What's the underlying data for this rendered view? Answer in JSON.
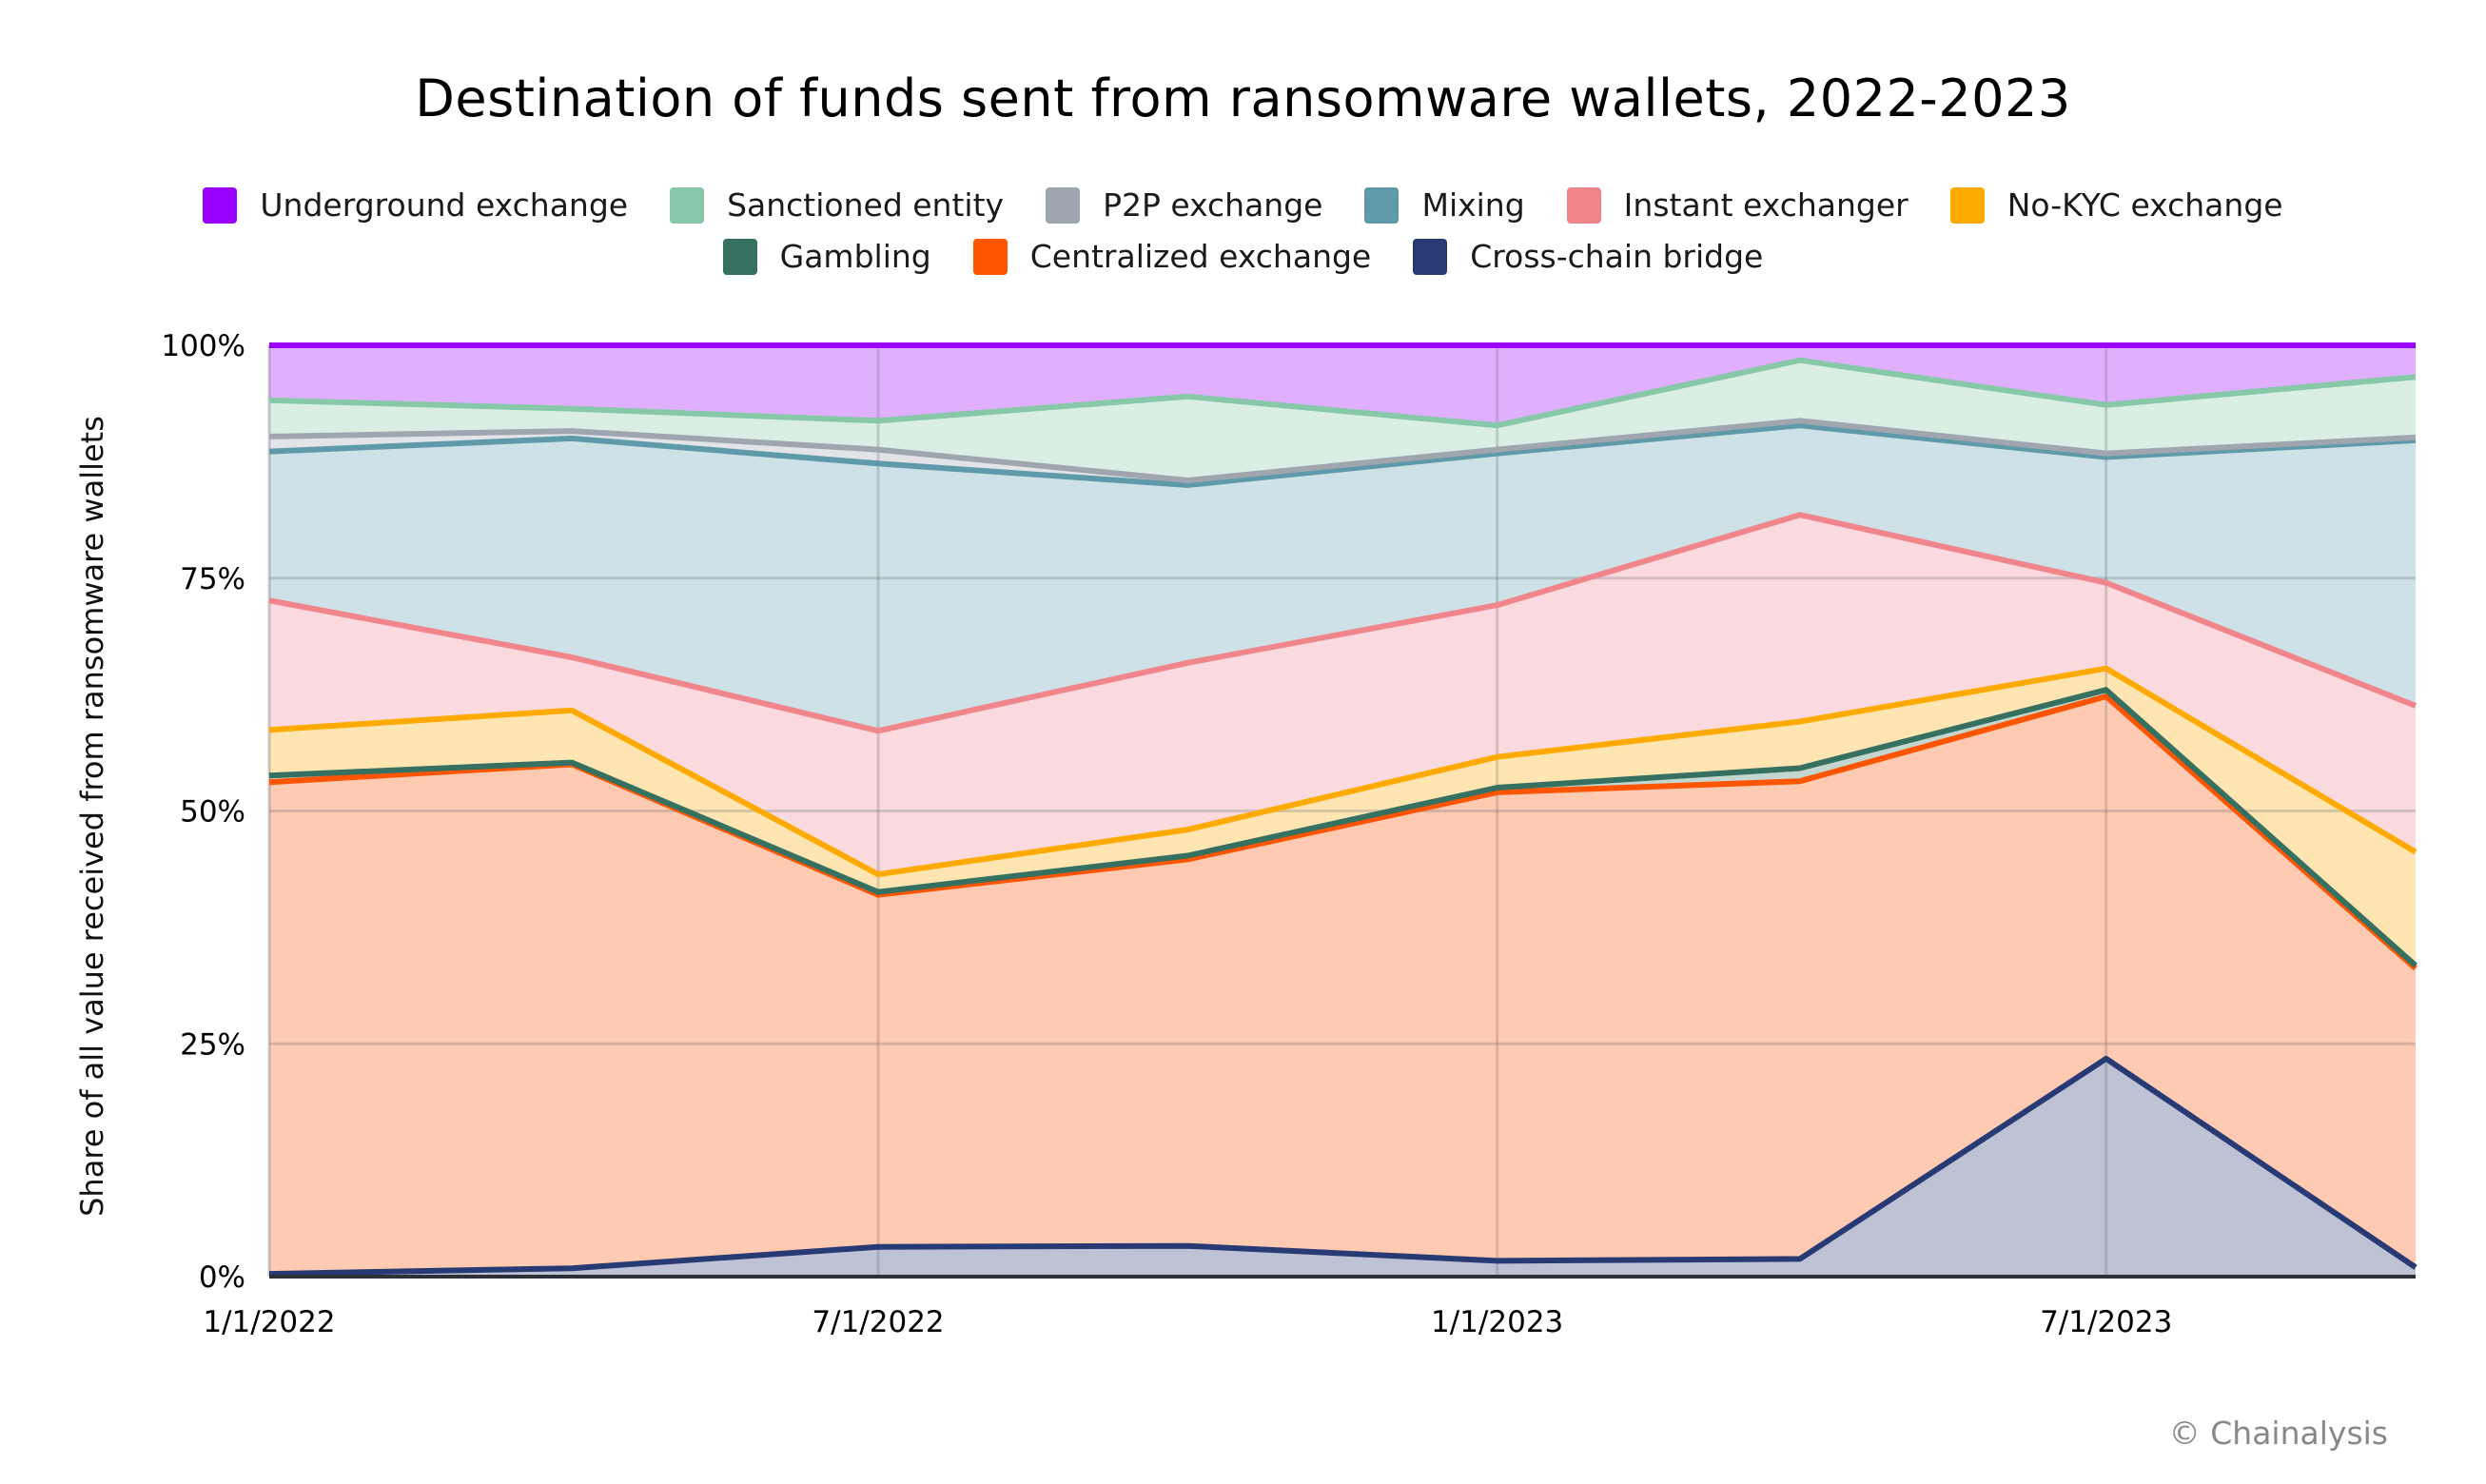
{
  "chart_data": {
    "type": "area",
    "stacked": true,
    "normalized": true,
    "title": "Destination of funds sent from ransomware wallets, 2022-2023",
    "xlabel": "",
    "ylabel": "Share of all value received from ransomware wallets",
    "ylim": [
      0,
      100
    ],
    "yticks": [
      "0%",
      "25%",
      "50%",
      "75%",
      "100%"
    ],
    "ytick_values": [
      0,
      25,
      50,
      75,
      100
    ],
    "xticks": [
      "1/1/2022",
      "7/1/2022",
      "1/1/2023",
      "7/1/2023"
    ],
    "xtick_days": [
      0,
      181,
      365,
      546
    ],
    "x": [
      "2022-01-01",
      "2022-04-01",
      "2022-07-01",
      "2022-10-01",
      "2023-01-01",
      "2023-04-01",
      "2023-07-01",
      "2023-10-01"
    ],
    "x_days": [
      0,
      90,
      181,
      273,
      365,
      455,
      546,
      638
    ],
    "grid": true,
    "legend_position": "top",
    "units": "percent of total",
    "series": [
      {
        "name": "Cross-chain bridge",
        "line": "#283A74",
        "fill": "#BDC3D4",
        "values": [
          0.3,
          0.9,
          3.2,
          3.3,
          1.7,
          1.9,
          23.4,
          1.0
        ]
      },
      {
        "name": "Centralized exchange",
        "line": "#FF5500",
        "fill": "#FFCAB2",
        "values": [
          52.8,
          54.1,
          37.8,
          41.5,
          50.3,
          51.3,
          38.9,
          32.1
        ]
      },
      {
        "name": "Gambling",
        "line": "#357060",
        "fill": "#C3D6D0",
        "values": [
          0.7,
          0.2,
          0.3,
          0.4,
          0.5,
          1.4,
          0.7,
          0.3
        ]
      },
      {
        "name": "No-KYC exchange",
        "line": "#FFAA00",
        "fill": "#FFE5B2",
        "values": [
          4.9,
          5.6,
          1.9,
          2.8,
          3.3,
          5.0,
          2.3,
          12.2
        ]
      },
      {
        "name": "Instant exchanger",
        "line": "#F0858C",
        "fill": "#FADADE",
        "values": [
          13.9,
          5.7,
          15.4,
          17.9,
          16.3,
          22.2,
          9.2,
          15.7
        ]
      },
      {
        "name": "Mixing",
        "line": "#5E9AAA",
        "fill": "#CEE1E6",
        "values": [
          16.0,
          23.5,
          28.7,
          19.1,
          16.3,
          9.6,
          13.5,
          28.5
        ]
      },
      {
        "name": "P2P exchange",
        "line": "#A0A6B0",
        "fill": "#E2E4E8",
        "values": [
          1.6,
          0.8,
          1.5,
          0.5,
          0.4,
          0.5,
          0.4,
          0.3
        ]
      },
      {
        "name": "Sanctioned entity",
        "line": "#86C8A8",
        "fill": "#DAEEE3",
        "values": [
          3.9,
          2.4,
          3.1,
          9.0,
          2.6,
          6.5,
          5.2,
          6.5
        ]
      },
      {
        "name": "Underground exchange",
        "line": "#9900FF",
        "fill": "#E0B0FF",
        "values": [
          5.9,
          6.8,
          8.1,
          5.5,
          8.6,
          1.6,
          6.4,
          3.4
        ]
      }
    ]
  },
  "legend": {
    "row1": [
      {
        "label": "Underground exchange",
        "color": "#9900FF"
      },
      {
        "label": "Sanctioned entity",
        "color": "#86C8A8"
      },
      {
        "label": "P2P exchange",
        "color": "#A0A6B0"
      },
      {
        "label": "Mixing",
        "color": "#5E9AAA"
      },
      {
        "label": "Instant exchanger",
        "color": "#F0858C"
      },
      {
        "label": "No-KYC exchange",
        "color": "#FFAA00"
      }
    ],
    "row2": [
      {
        "label": "Gambling",
        "color": "#357060"
      },
      {
        "label": "Centralized exchange",
        "color": "#FF5500"
      },
      {
        "label": "Cross-chain bridge",
        "color": "#283A74"
      }
    ]
  },
  "footer": {
    "credit": "© Chainalysis"
  }
}
